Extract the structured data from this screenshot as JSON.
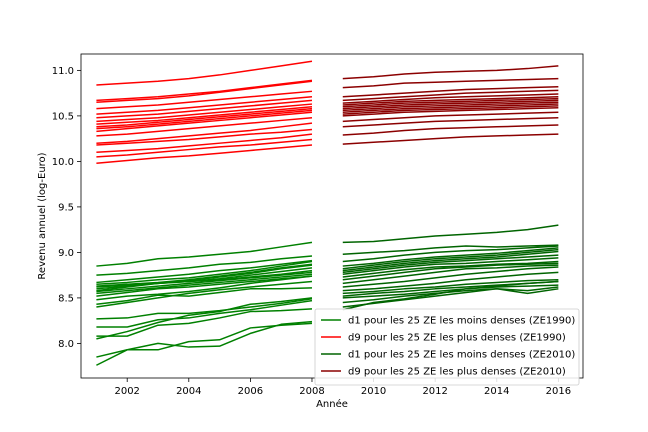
{
  "chart_data": {
    "type": "line",
    "title": "",
    "xlabel": "Année",
    "ylabel": "Revenu annuel (log-Euro)",
    "xlim": [
      2000.5,
      2016.8
    ],
    "ylim": [
      7.62,
      11.18
    ],
    "xticks": [
      2002,
      2004,
      2006,
      2008,
      2010,
      2012,
      2014,
      2016
    ],
    "yticks": [
      8.0,
      8.5,
      9.0,
      9.5,
      10.0,
      10.5,
      11.0
    ],
    "xtick_labels": [
      "2002",
      "2004",
      "2006",
      "2008",
      "2010",
      "2012",
      "2014",
      "2016"
    ],
    "ytick_labels": [
      "8.0",
      "8.5",
      "9.0",
      "9.5",
      "10.0",
      "10.5",
      "11.0"
    ],
    "grid": false,
    "legend_position": "lower-right",
    "colors": {
      "d1_1990": "#008000",
      "d9_1990": "#ff0000",
      "d1_2010": "#006400",
      "d9_2010": "#8b0000"
    },
    "legend": [
      {
        "label": "d1 pour les 25 ZE les moins denses (ZE1990)",
        "color": "#008000"
      },
      {
        "label": "d9 pour les 25 ZE les plus denses (ZE1990)",
        "color": "#ff0000"
      },
      {
        "label": "d1 pour les 25 ZE les moins denses (ZE2010)",
        "color": "#006400"
      },
      {
        "label": "d9 pour les 25 ZE les plus denses (ZE2010)",
        "color": "#8b0000"
      }
    ],
    "groups": [
      {
        "group": "d1_1990",
        "x": [
          2001,
          2002,
          2003,
          2004,
          2005,
          2006,
          2007,
          2008
        ],
        "series": [
          [
            8.85,
            8.88,
            8.93,
            8.95,
            8.98,
            9.01,
            9.06,
            9.11
          ],
          [
            8.75,
            8.77,
            8.8,
            8.83,
            8.87,
            8.89,
            8.93,
            8.96
          ],
          [
            8.67,
            8.7,
            8.73,
            8.76,
            8.8,
            8.83,
            8.87,
            8.91
          ],
          [
            8.65,
            8.67,
            8.7,
            8.72,
            8.76,
            8.8,
            8.85,
            8.9
          ],
          [
            8.63,
            8.65,
            8.67,
            8.7,
            8.74,
            8.78,
            8.83,
            8.87
          ],
          [
            8.62,
            8.64,
            8.66,
            8.69,
            8.73,
            8.77,
            8.82,
            8.86
          ],
          [
            8.6,
            8.63,
            8.66,
            8.68,
            8.71,
            8.75,
            8.79,
            8.83
          ],
          [
            8.58,
            8.62,
            8.66,
            8.68,
            8.7,
            8.73,
            8.76,
            8.8
          ],
          [
            8.57,
            8.6,
            8.63,
            8.66,
            8.69,
            8.72,
            8.75,
            8.78
          ],
          [
            8.55,
            8.58,
            8.61,
            8.64,
            8.67,
            8.7,
            8.73,
            8.76
          ],
          [
            8.52,
            8.56,
            8.6,
            8.62,
            8.65,
            8.68,
            8.71,
            8.74
          ],
          [
            8.48,
            8.52,
            8.54,
            8.57,
            8.61,
            8.66,
            8.7,
            8.74
          ],
          [
            8.43,
            8.47,
            8.53,
            8.52,
            8.56,
            8.6,
            8.6,
            8.61
          ],
          [
            8.4,
            8.45,
            8.5,
            8.55,
            8.59,
            8.62,
            8.65,
            8.68
          ],
          [
            8.27,
            8.28,
            8.33,
            8.33,
            8.36,
            8.4,
            8.44,
            8.49
          ],
          [
            8.18,
            8.18,
            8.26,
            8.28,
            8.33,
            8.37,
            8.42,
            8.47
          ],
          [
            8.08,
            8.08,
            8.2,
            8.22,
            8.28,
            8.35,
            8.36,
            8.38
          ],
          [
            8.05,
            8.13,
            8.23,
            8.31,
            8.35,
            8.43,
            8.46,
            8.5
          ],
          [
            7.85,
            7.93,
            7.93,
            8.02,
            8.04,
            8.17,
            8.2,
            8.22
          ],
          [
            7.76,
            7.93,
            8.0,
            7.96,
            7.97,
            8.11,
            8.21,
            8.24
          ]
        ]
      },
      {
        "group": "d9_1990",
        "x": [
          2001,
          2002,
          2003,
          2004,
          2005,
          2006,
          2007,
          2008
        ],
        "series": [
          [
            10.84,
            10.86,
            10.88,
            10.91,
            10.95,
            11.0,
            11.05,
            11.1
          ],
          [
            10.67,
            10.69,
            10.71,
            10.74,
            10.77,
            10.81,
            10.85,
            10.89
          ],
          [
            10.65,
            10.67,
            10.69,
            10.72,
            10.76,
            10.8,
            10.84,
            10.88
          ],
          [
            10.58,
            10.6,
            10.62,
            10.65,
            10.68,
            10.71,
            10.74,
            10.77
          ],
          [
            10.52,
            10.54,
            10.56,
            10.59,
            10.62,
            10.65,
            10.68,
            10.71
          ],
          [
            10.48,
            10.5,
            10.52,
            10.55,
            10.58,
            10.61,
            10.64,
            10.67
          ],
          [
            10.44,
            10.46,
            10.48,
            10.51,
            10.54,
            10.57,
            10.6,
            10.63
          ],
          [
            10.41,
            10.43,
            10.45,
            10.48,
            10.51,
            10.54,
            10.57,
            10.6
          ],
          [
            10.38,
            10.4,
            10.43,
            10.46,
            10.49,
            10.52,
            10.55,
            10.58
          ],
          [
            10.36,
            10.38,
            10.41,
            10.44,
            10.47,
            10.5,
            10.53,
            10.56
          ],
          [
            10.33,
            10.36,
            10.39,
            10.42,
            10.45,
            10.48,
            10.51,
            10.54
          ],
          [
            10.28,
            10.3,
            10.33,
            10.36,
            10.39,
            10.42,
            10.45,
            10.48
          ],
          [
            10.2,
            10.22,
            10.25,
            10.28,
            10.31,
            10.34,
            10.38,
            10.42
          ],
          [
            10.18,
            10.2,
            10.22,
            10.24,
            10.27,
            10.3,
            10.32,
            10.35
          ],
          [
            10.1,
            10.12,
            10.14,
            10.17,
            10.2,
            10.23,
            10.26,
            10.3
          ],
          [
            10.05,
            10.07,
            10.1,
            10.13,
            10.16,
            10.18,
            10.21,
            10.24
          ],
          [
            9.98,
            10.01,
            10.04,
            10.06,
            10.09,
            10.12,
            10.15,
            10.18
          ]
        ]
      },
      {
        "group": "d1_2010",
        "x": [
          2009,
          2010,
          2011,
          2012,
          2013,
          2014,
          2015,
          2016
        ],
        "series": [
          [
            9.11,
            9.12,
            9.15,
            9.18,
            9.2,
            9.22,
            9.25,
            9.3
          ],
          [
            8.98,
            9.0,
            9.02,
            9.05,
            9.07,
            9.06,
            9.07,
            9.08
          ],
          [
            8.9,
            8.93,
            8.97,
            9.0,
            9.02,
            9.03,
            9.05,
            9.07
          ],
          [
            8.85,
            8.88,
            8.92,
            8.95,
            8.97,
            8.99,
            9.02,
            9.05
          ],
          [
            8.82,
            8.86,
            8.9,
            8.93,
            8.95,
            8.97,
            9.0,
            9.03
          ],
          [
            8.8,
            8.84,
            8.88,
            8.91,
            8.93,
            8.95,
            8.98,
            9.01
          ],
          [
            8.78,
            8.82,
            8.86,
            8.89,
            8.91,
            8.93,
            8.95,
            8.97
          ],
          [
            8.76,
            8.8,
            8.84,
            8.87,
            8.88,
            8.9,
            8.92,
            8.94
          ],
          [
            8.73,
            8.77,
            8.81,
            8.84,
            8.85,
            8.87,
            8.88,
            8.9
          ],
          [
            8.7,
            8.74,
            8.78,
            8.82,
            8.84,
            8.86,
            8.87,
            8.88
          ],
          [
            8.66,
            8.7,
            8.74,
            8.78,
            8.82,
            8.83,
            8.85,
            8.86
          ],
          [
            8.62,
            8.65,
            8.68,
            8.72,
            8.76,
            8.79,
            8.82,
            8.84
          ],
          [
            8.58,
            8.6,
            8.63,
            8.66,
            8.7,
            8.73,
            8.76,
            8.78
          ],
          [
            8.55,
            8.57,
            8.6,
            8.62,
            8.65,
            8.67,
            8.69,
            8.7
          ],
          [
            8.52,
            8.55,
            8.57,
            8.6,
            8.62,
            8.64,
            8.66,
            8.68
          ],
          [
            8.5,
            8.52,
            8.54,
            8.57,
            8.6,
            8.62,
            8.63,
            8.64
          ],
          [
            8.45,
            8.48,
            8.52,
            8.55,
            8.58,
            8.6,
            8.58,
            8.62
          ],
          [
            8.4,
            8.44,
            8.48,
            8.52,
            8.56,
            8.6,
            8.55,
            8.6
          ],
          [
            8.37,
            8.45,
            8.49,
            8.54,
            8.6,
            8.63,
            8.66,
            8.68
          ]
        ]
      },
      {
        "group": "d9_2010",
        "x": [
          2009,
          2010,
          2011,
          2012,
          2013,
          2014,
          2015,
          2016
        ],
        "series": [
          [
            10.91,
            10.93,
            10.96,
            10.98,
            10.99,
            11.0,
            11.02,
            11.05
          ],
          [
            10.81,
            10.83,
            10.86,
            10.87,
            10.88,
            10.89,
            10.9,
            10.91
          ],
          [
            10.71,
            10.73,
            10.75,
            10.77,
            10.79,
            10.8,
            10.81,
            10.82
          ],
          [
            10.67,
            10.69,
            10.71,
            10.73,
            10.75,
            10.76,
            10.77,
            10.78
          ],
          [
            10.64,
            10.66,
            10.68,
            10.7,
            10.71,
            10.72,
            10.73,
            10.74
          ],
          [
            10.62,
            10.64,
            10.66,
            10.67,
            10.68,
            10.69,
            10.7,
            10.71
          ],
          [
            10.6,
            10.62,
            10.64,
            10.65,
            10.66,
            10.67,
            10.68,
            10.69
          ],
          [
            10.58,
            10.6,
            10.62,
            10.63,
            10.64,
            10.65,
            10.66,
            10.67
          ],
          [
            10.56,
            10.58,
            10.6,
            10.61,
            10.62,
            10.63,
            10.64,
            10.65
          ],
          [
            10.54,
            10.56,
            10.58,
            10.59,
            10.6,
            10.61,
            10.62,
            10.63
          ],
          [
            10.52,
            10.54,
            10.56,
            10.57,
            10.58,
            10.59,
            10.6,
            10.61
          ],
          [
            10.5,
            10.52,
            10.54,
            10.55,
            10.56,
            10.57,
            10.58,
            10.59
          ],
          [
            10.44,
            10.46,
            10.48,
            10.5,
            10.51,
            10.52,
            10.53,
            10.54
          ],
          [
            10.38,
            10.4,
            10.42,
            10.44,
            10.45,
            10.46,
            10.47,
            10.48
          ],
          [
            10.29,
            10.31,
            10.34,
            10.36,
            10.37,
            10.38,
            10.39,
            10.4
          ],
          [
            10.19,
            10.21,
            10.23,
            10.25,
            10.27,
            10.28,
            10.29,
            10.3
          ]
        ]
      }
    ]
  }
}
